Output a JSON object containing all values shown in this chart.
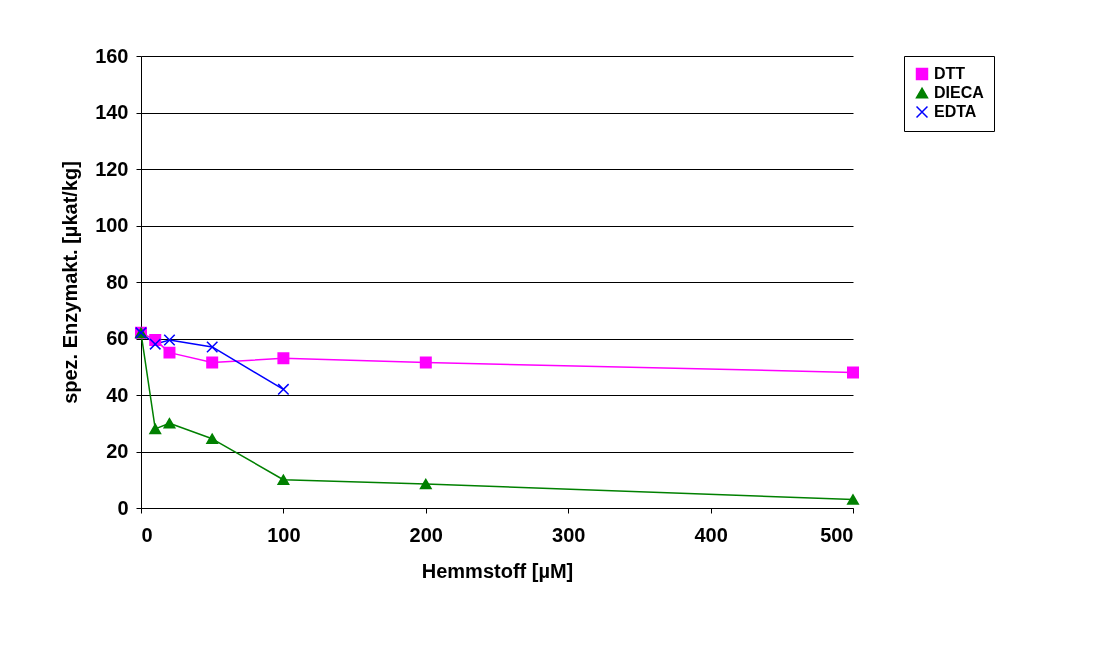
{
  "chart_data": {
    "type": "line",
    "xlabel": "Hemmstoff [µM]",
    "ylabel": "spez. Enzymakt. [µkat/kg]",
    "x": [
      0,
      10,
      20,
      50,
      100,
      200,
      500
    ],
    "series": [
      {
        "name": "DTT",
        "color": "#ff00ff",
        "marker": "square",
        "values": [
          62,
          59.5,
          55,
          51.5,
          53,
          51.5,
          48
        ]
      },
      {
        "name": "DIECA",
        "color": "#008000",
        "marker": "triangle",
        "values": [
          62,
          28,
          30,
          24.5,
          10,
          8.5,
          3
        ]
      },
      {
        "name": "EDTA",
        "color": "#0000ff",
        "marker": "cross",
        "values": [
          62,
          58,
          59.5,
          57,
          42,
          null,
          null
        ]
      }
    ],
    "xlim": [
      0,
      500
    ],
    "xticks": [
      0,
      100,
      200,
      300,
      400,
      500
    ],
    "ylim": [
      0,
      160
    ],
    "yticks": [
      0,
      20,
      40,
      60,
      80,
      100,
      120,
      140,
      160
    ],
    "grid": "y",
    "legend": "right",
    "line_style": "solid"
  }
}
